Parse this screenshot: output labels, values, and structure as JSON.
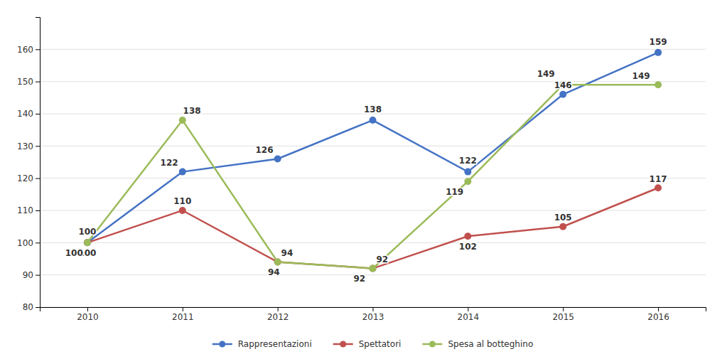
{
  "chart_data": {
    "type": "line",
    "x": [
      2010,
      2011,
      2012,
      2013,
      2014,
      2015,
      2016
    ],
    "xlim": [
      2009.5,
      2016.5
    ],
    "xticks": [
      2010,
      2011,
      2012,
      2013,
      2014,
      2015,
      2016
    ],
    "ylim": [
      80,
      170
    ],
    "yticks": [
      80,
      90,
      100,
      110,
      120,
      130,
      140,
      150,
      160
    ],
    "grid": true,
    "data_labels": true,
    "legend": "bottom",
    "marker": "circle",
    "series": [
      {
        "name": "Rappresentazioni",
        "color": "#4472C4",
        "values": [
          100,
          122,
          126,
          138,
          122,
          146,
          159
        ]
      },
      {
        "name": "Spettatori",
        "color": "#C0504D",
        "values": [
          100,
          110,
          94,
          92,
          102,
          105,
          117
        ]
      },
      {
        "name": "Spesa al botteghino",
        "color": "#9BBB59",
        "values": [
          100,
          138,
          94,
          92,
          119,
          149,
          149
        ]
      }
    ]
  }
}
